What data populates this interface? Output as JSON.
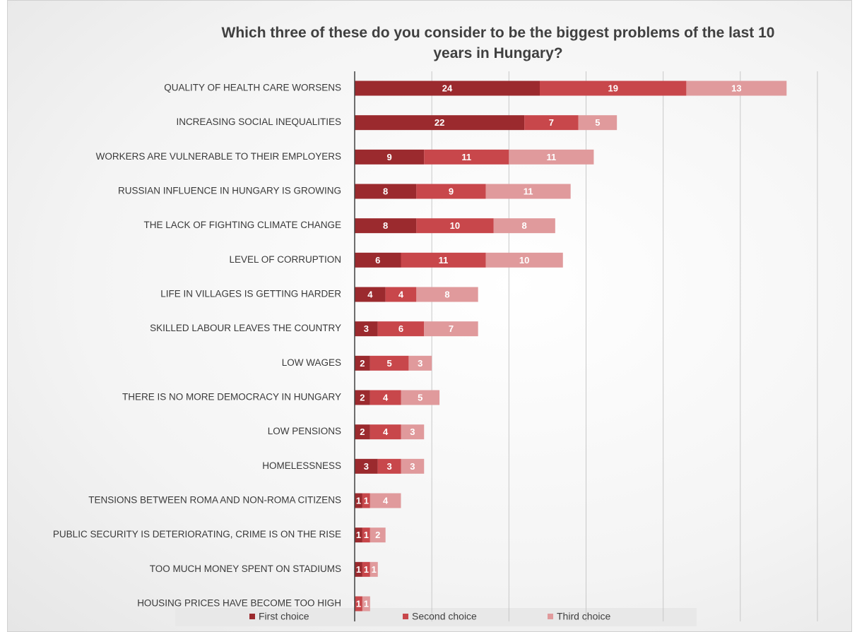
{
  "chart_data": {
    "type": "stacked-bar-horizontal",
    "title": "Which three of these do you consider to be the biggest problems of the last 10 years in Hungary?",
    "categories": [
      "QUALITY OF HEALTH CARE WORSENS",
      "INCREASING SOCIAL INEQUALITIES",
      "WORKERS ARE VULNERABLE TO THEIR EMPLOYERS",
      "RUSSIAN INFLUENCE IN HUNGARY IS GROWING",
      "THE LACK OF FIGHTING CLIMATE CHANGE",
      "LEVEL OF CORRUPTION",
      "LIFE IN VILLAGES IS GETTING HARDER",
      "SKILLED LABOUR LEAVES THE COUNTRY",
      "LOW WAGES",
      "THERE IS NO MORE DEMOCRACY IN HUNGARY",
      "LOW PENSIONS",
      "HOMELESSNESS",
      "TENSIONS BETWEEN ROMA AND NON-ROMA CITIZENS",
      "PUBLIC SECURITY IS DETERIORATING, CRIME IS ON THE RISE",
      "TOO MUCH MONEY SPENT ON STADIUMS",
      "HOUSING PRICES HAVE BECOME TOO HIGH"
    ],
    "series": [
      {
        "name": "First choice",
        "color": "#9b2a2e",
        "values": [
          24,
          22,
          9,
          8,
          8,
          6,
          4,
          3,
          2,
          2,
          2,
          3,
          1,
          1,
          1,
          0
        ]
      },
      {
        "name": "Second choice",
        "color": "#c8474b",
        "values": [
          19,
          7,
          11,
          9,
          10,
          11,
          4,
          6,
          5,
          4,
          4,
          3,
          1,
          1,
          1,
          1
        ]
      },
      {
        "name": "Third choice",
        "color": "#e09a9c",
        "values": [
          13,
          5,
          11,
          11,
          8,
          10,
          8,
          7,
          3,
          5,
          3,
          3,
          4,
          2,
          1,
          1
        ]
      }
    ],
    "xlim": [
      0,
      60
    ],
    "xticks": [
      0,
      10,
      20,
      30,
      40,
      50,
      60
    ],
    "grid": true,
    "legend": "bottom"
  }
}
